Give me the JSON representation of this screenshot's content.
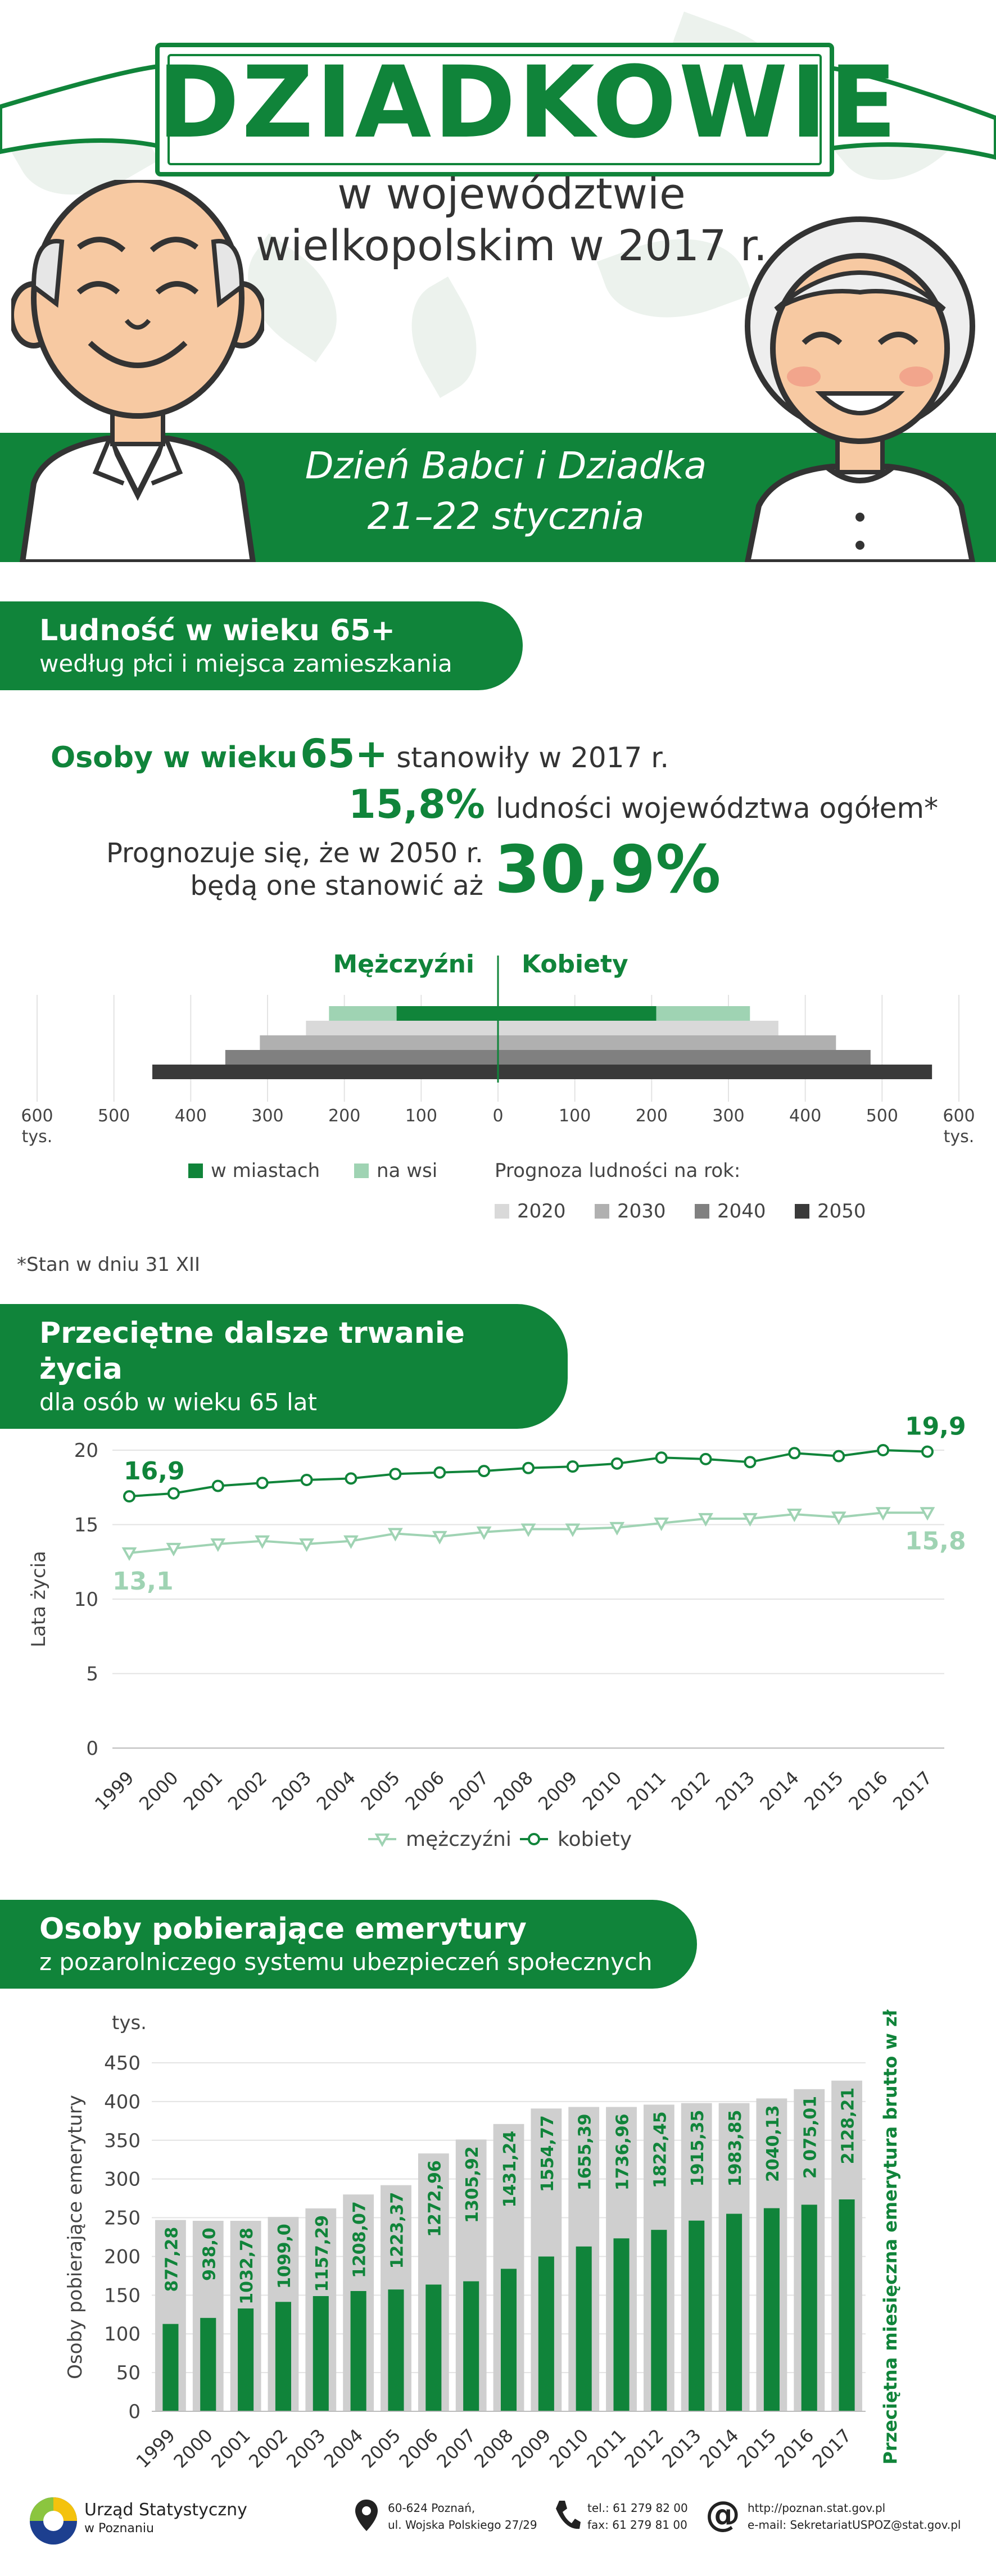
{
  "header": {
    "title": "DZIADKOWIE",
    "subtitle_line1": "w województwie",
    "subtitle_line2": "wielkopolskim w 2017 r.",
    "band_line1": "Dzień Babci i Dziadka",
    "band_line2": "21–22 stycznia"
  },
  "section1": {
    "title": "Ludność w wieku 65+",
    "subtitle": "według płci i miejsca zamieszkania",
    "stat_lead": "Osoby w wieku",
    "stat_age": "65+",
    "stat_mid": "stanowiły w 2017 r.",
    "stat_pct": "15,8%",
    "stat_tail": "ludności województwa ogółem*",
    "forecast_line1": "Prognozuje się, że w 2050 r.",
    "forecast_line2": "będą one stanowić aż",
    "forecast_pct": "30,9%",
    "footnote": "*Stan w dniu 31 XII"
  },
  "section2": {
    "title": "Przeciętne dalsze trwanie życia",
    "subtitle": "dla osób w wieku 65 lat"
  },
  "section3": {
    "title": "Osoby pobierające emerytury",
    "subtitle": "z pozarolniczego systemu ubezpieczeń społecznych"
  },
  "colors": {
    "green": "#10843a",
    "light_green": "#9fd3b3",
    "gray2020": "#d9d9d9",
    "gray2030": "#b0b0b0",
    "gray2040": "#808080",
    "gray2050": "#3a3a3a",
    "bar_gray": "#cfcfcf"
  },
  "chart_data": [
    {
      "type": "bar",
      "orientation": "horizontal-pyramid",
      "left_label": "Mężczyźni",
      "right_label": "Kobiety",
      "ticks": [
        "600",
        "500",
        "400",
        "300",
        "200",
        "100",
        "0",
        "100",
        "200",
        "300",
        "400",
        "500",
        "600"
      ],
      "unit_left": "tys.",
      "unit_right": "tys.",
      "xlim": [
        -600,
        600
      ],
      "series_2017": [
        {
          "name": "w miastach",
          "men": 132,
          "women": 206
        },
        {
          "name": "na wsi",
          "men": 88,
          "women": 122
        }
      ],
      "forecast": [
        {
          "name": "2020",
          "men": 250,
          "women": 365
        },
        {
          "name": "2030",
          "men": 310,
          "women": 440
        },
        {
          "name": "2040",
          "men": 355,
          "women": 485
        },
        {
          "name": "2050",
          "men": 450,
          "women": 565
        }
      ],
      "legend_caption": "Prognoza ludności na rok:",
      "legend_year_labels": [
        "2020",
        "2030",
        "2040",
        "2050"
      ]
    },
    {
      "type": "line",
      "ylabel": "Lata życia",
      "ylim": [
        0,
        20
      ],
      "yticks": [
        "0",
        "5",
        "10",
        "15",
        "20"
      ],
      "x": [
        "1999",
        "2000",
        "2001",
        "2002",
        "2003",
        "2004",
        "2005",
        "2006",
        "2007",
        "2008",
        "2009",
        "2010",
        "2011",
        "2012",
        "2013",
        "2014",
        "2015",
        "2016",
        "2017"
      ],
      "series": [
        {
          "name": "mężczyźni",
          "values": [
            13.1,
            13.4,
            13.7,
            13.9,
            13.7,
            13.9,
            14.4,
            14.2,
            14.5,
            14.7,
            14.7,
            14.8,
            15.1,
            15.4,
            15.4,
            15.7,
            15.5,
            15.8,
            15.8
          ]
        },
        {
          "name": "kobiety",
          "values": [
            16.9,
            17.1,
            17.6,
            17.8,
            18.0,
            18.1,
            18.4,
            18.5,
            18.6,
            18.8,
            18.9,
            19.1,
            19.5,
            19.4,
            19.2,
            19.8,
            19.6,
            20.0,
            19.9
          ]
        }
      ],
      "annotations": {
        "m_start": "13,1",
        "m_end": "15,8",
        "k_start": "16,9",
        "k_end": "19,9"
      }
    },
    {
      "type": "bar",
      "unit": "tys.",
      "ylabel_left": "Osoby pobierające emerytury",
      "ylabel_right": "Przeciętna miesięczna emerytura brutto w zł",
      "ylim": [
        0,
        450
      ],
      "yticks": [
        "0",
        "50",
        "100",
        "150",
        "200",
        "250",
        "300",
        "350",
        "400",
        "450"
      ],
      "categories": [
        "1999",
        "2000",
        "2001",
        "2002",
        "2003",
        "2004",
        "2005",
        "2006",
        "2007",
        "2008",
        "2009",
        "2010",
        "2011",
        "2012",
        "2013",
        "2014",
        "2015",
        "2016",
        "2017"
      ],
      "persons": [
        247,
        246,
        246,
        251,
        262,
        280,
        292,
        333,
        351,
        371,
        391,
        393,
        393,
        396,
        398,
        398,
        404,
        416,
        427
      ],
      "pension": [
        877.28,
        938.0,
        1032.78,
        1099.0,
        1157.29,
        1208.07,
        1223.37,
        1272.96,
        1305.92,
        1431.24,
        1554.77,
        1655.39,
        1736.96,
        1822.45,
        1915.35,
        1983.85,
        2040.13,
        2075.01,
        2128.21
      ],
      "pension_labels": [
        "877,28",
        "938,0",
        "1032,78",
        "1099,0",
        "1157,29",
        "1208,07",
        "1223,37",
        "1272,96",
        "1305,92",
        "1431,24",
        "1554,77",
        "1655,39",
        "1736,96",
        "1822,45",
        "1915,35",
        "1983,85",
        "2040,13",
        "2 075,01",
        "2128,21"
      ],
      "pension_scale_max": 3500
    }
  ],
  "footer": {
    "org_line1": "Urząd Statystyczny",
    "org_line2": "w Poznaniu",
    "addr_line1": "60-624 Poznań,",
    "addr_line2": "ul. Wojska Polskiego 27/29",
    "tel": "tel.: 61 279 82 00",
    "fax": "fax: 61 279 81 00",
    "www": "http://poznan.stat.gov.pl",
    "email": "e-mail: SekretariatUSPOZ@stat.gov.pl",
    "at_symbol": "@"
  }
}
